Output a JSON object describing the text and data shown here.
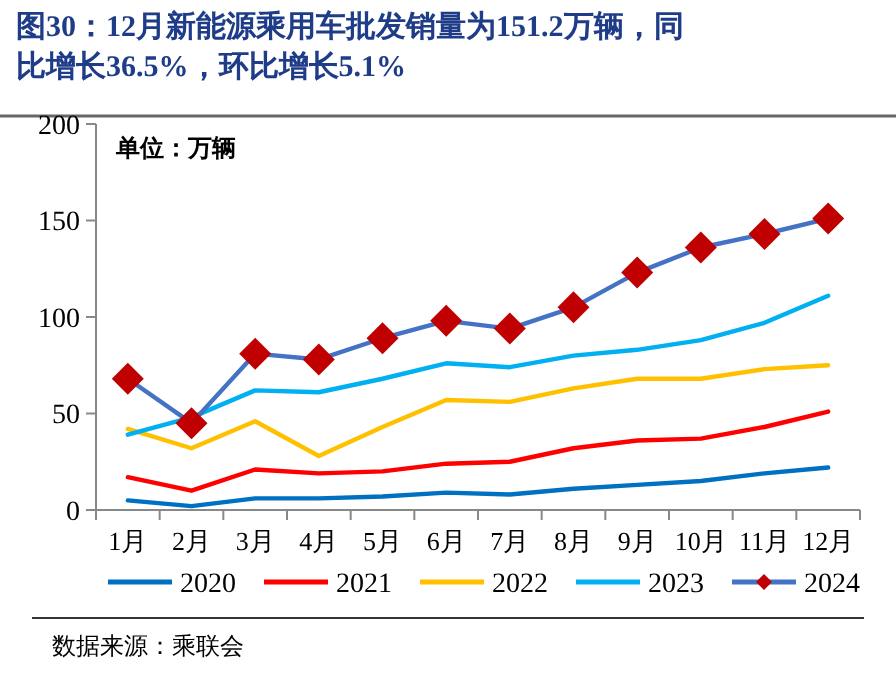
{
  "chart_data": {
    "type": "line",
    "title": "图30：12月新能源乘用车批发销量为151.2万辆，同比增长36.5%，环比增长5.1%",
    "categories": [
      "1月",
      "2月",
      "3月",
      "4月",
      "5月",
      "6月",
      "7月",
      "8月",
      "9月",
      "10月",
      "11月",
      "12月"
    ],
    "series": [
      {
        "name": "2020",
        "color": "#0070c0",
        "values": [
          5,
          2,
          6,
          6,
          7,
          9,
          8,
          11,
          13,
          15,
          19,
          22
        ]
      },
      {
        "name": "2021",
        "color": "#ff0000",
        "values": [
          17,
          10,
          21,
          19,
          20,
          24,
          25,
          32,
          36,
          37,
          43,
          51
        ]
      },
      {
        "name": "2022",
        "color": "#ffc000",
        "values": [
          42,
          32,
          46,
          28,
          43,
          57,
          56,
          63,
          68,
          68,
          73,
          75
        ]
      },
      {
        "name": "2023",
        "color": "#00b0f0",
        "values": [
          39,
          48,
          62,
          61,
          68,
          76,
          74,
          80,
          83,
          88,
          97,
          111
        ]
      },
      {
        "name": "2024",
        "color": "#4472c4",
        "marker": "diamond",
        "colors": [
          "#c00000",
          "#c00000",
          "#c00000",
          "#c00000",
          "#c00000",
          "#c00000",
          "#c00000",
          "#c00000",
          "#c00000",
          "#c00000",
          "#c00000",
          "#c00000"
        ],
        "values": [
          68,
          45,
          81,
          78,
          89,
          98,
          94,
          105,
          123,
          136,
          143,
          151
        ]
      }
    ],
    "ylim": [
      0,
      200
    ],
    "yticks": [
      0,
      50,
      100,
      150,
      200
    ],
    "grid": false,
    "legend": "bottom",
    "marker": "none",
    "line_style": "solid",
    "annotations": [
      "单位：万辆",
      "数据来源：乘联会"
    ]
  }
}
